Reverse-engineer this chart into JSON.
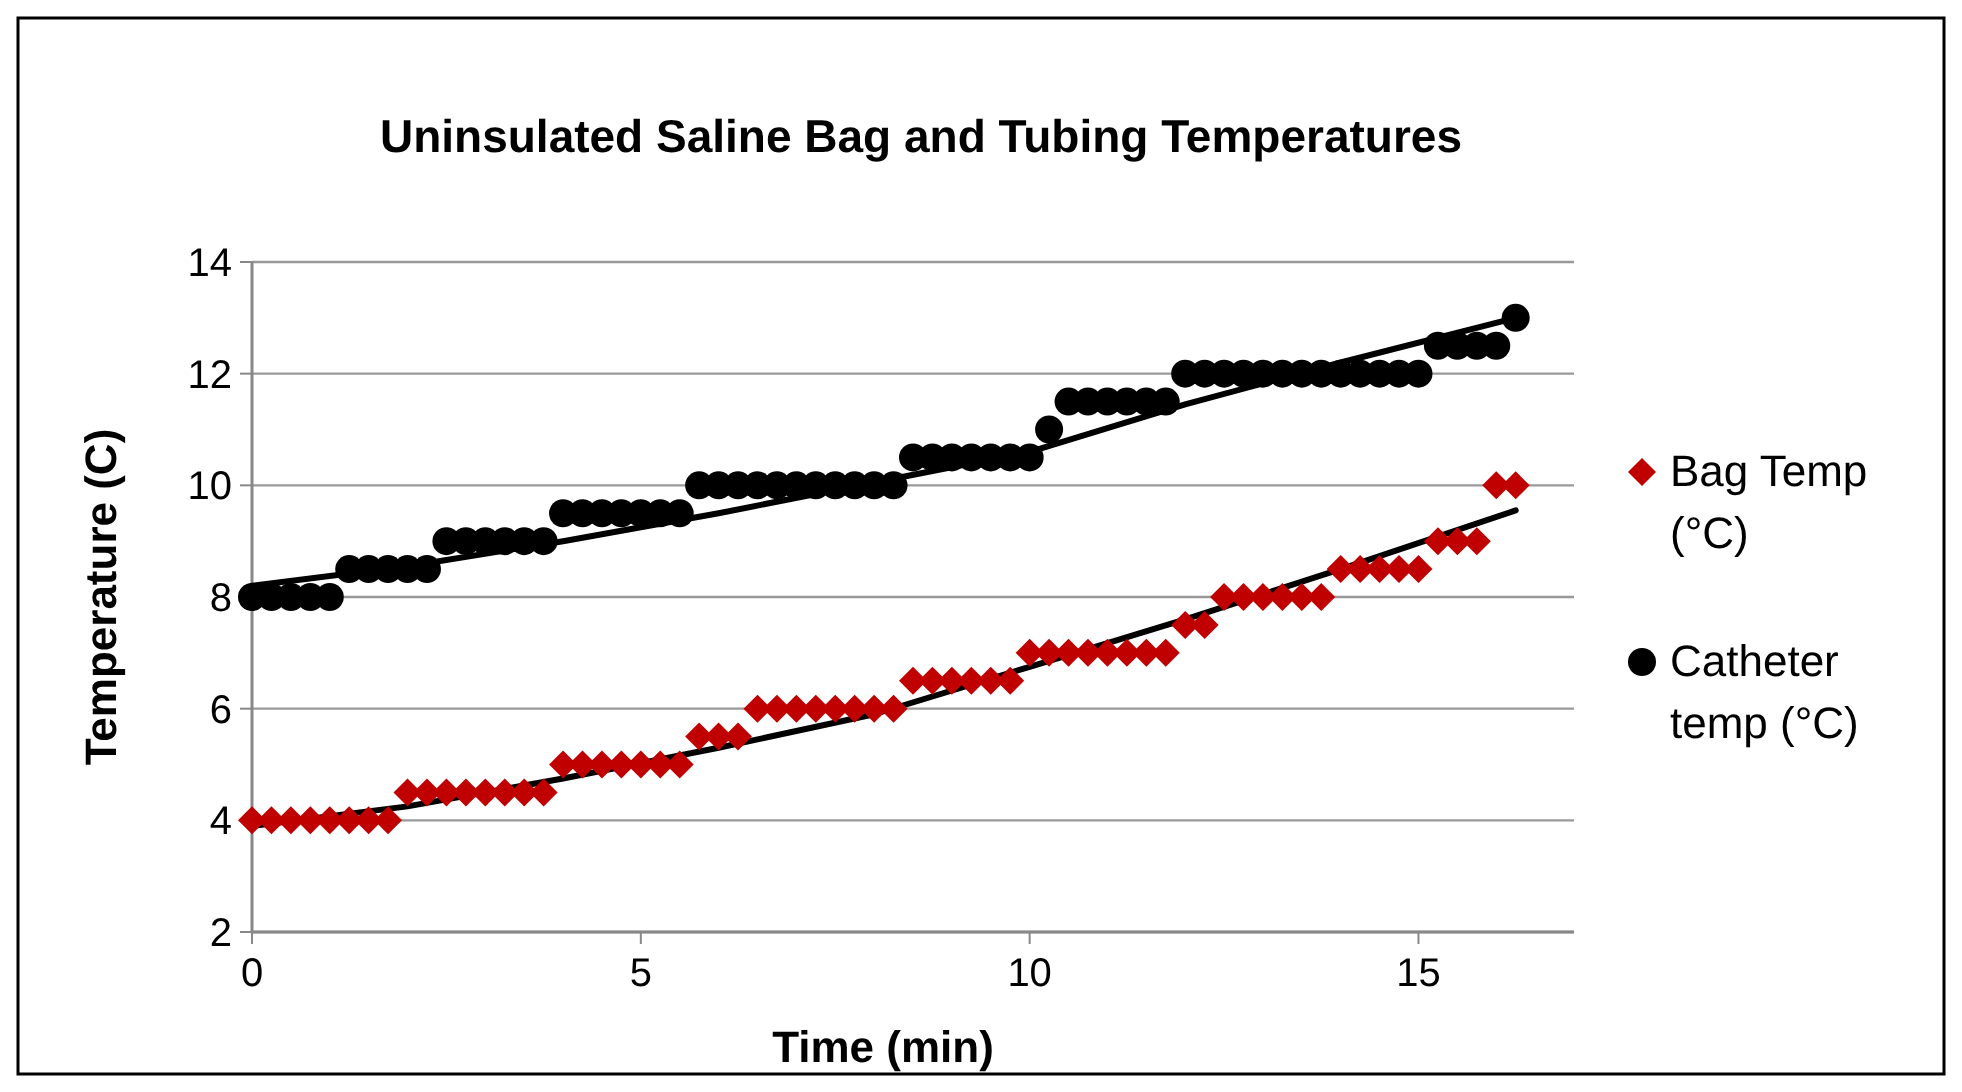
{
  "chart_data": {
    "type": "scatter",
    "title": "Uninsulated Saline Bag and Tubing Temperatures",
    "xlabel": "Time (min)",
    "ylabel": "Temperature (C)",
    "x": [
      0,
      0.25,
      0.5,
      0.75,
      1,
      1.25,
      1.5,
      1.75,
      2,
      2.25,
      2.5,
      2.75,
      3,
      3.25,
      3.5,
      3.75,
      4,
      4.25,
      4.5,
      4.75,
      5,
      5.25,
      5.5,
      5.75,
      6,
      6.25,
      6.5,
      6.75,
      7,
      7.25,
      7.5,
      7.75,
      8,
      8.25,
      8.5,
      8.75,
      9,
      9.25,
      9.5,
      9.75,
      10,
      10.25,
      10.5,
      10.75,
      11,
      11.25,
      11.5,
      11.75,
      12,
      12.25,
      12.5,
      12.75,
      13,
      13.25,
      13.5,
      13.75,
      14,
      14.25,
      14.5,
      14.75,
      15,
      15.25,
      15.5,
      15.75,
      16,
      16.25
    ],
    "series": [
      {
        "name": "Bag Temp (°C)",
        "color": "#c00000",
        "marker": "diamond",
        "values": [
          4,
          4,
          4,
          4,
          4,
          4,
          4,
          4,
          4.5,
          4.5,
          4.5,
          4.5,
          4.5,
          4.5,
          4.5,
          4.5,
          5,
          5,
          5,
          5,
          5,
          5,
          5,
          5.5,
          5.5,
          5.5,
          6,
          6,
          6,
          6,
          6,
          6,
          6,
          6,
          6.5,
          6.5,
          6.5,
          6.5,
          6.5,
          6.5,
          7,
          7,
          7,
          7,
          7,
          7,
          7,
          7,
          7.5,
          7.5,
          8,
          8,
          8,
          8,
          8,
          8,
          8.5,
          8.5,
          8.5,
          8.5,
          8.5,
          9,
          9,
          9,
          10,
          10
        ]
      },
      {
        "name": "Catheter temp (°C)",
        "color": "#000000",
        "marker": "circle",
        "values": [
          8,
          8,
          8,
          8,
          8,
          8.5,
          8.5,
          8.5,
          8.5,
          8.5,
          9,
          9,
          9,
          9,
          9,
          9,
          9.5,
          9.5,
          9.5,
          9.5,
          9.5,
          9.5,
          9.5,
          10,
          10,
          10,
          10,
          10,
          10,
          10,
          10,
          10,
          10,
          10,
          10.5,
          10.5,
          10.5,
          10.5,
          10.5,
          10.5,
          10.5,
          11,
          11.5,
          11.5,
          11.5,
          11.5,
          11.5,
          11.5,
          12,
          12,
          12,
          12,
          12,
          12,
          12,
          12,
          12,
          12,
          12,
          12,
          12,
          12.5,
          12.5,
          12.5,
          12.5,
          13
        ]
      },
      {
        "type": "line",
        "color": "#000000",
        "marker": "none",
        "x": [
          0,
          2,
          4,
          6,
          8,
          10,
          12,
          14,
          16.25
        ],
        "values": [
          3.9,
          4.25,
          4.75,
          5.3,
          5.9,
          6.75,
          7.6,
          8.5,
          9.55
        ]
      },
      {
        "type": "line",
        "color": "#000000",
        "marker": "none",
        "x": [
          0,
          2,
          4,
          6,
          8,
          10,
          12,
          14,
          16.25
        ],
        "values": [
          8.2,
          8.55,
          9.0,
          9.5,
          10.05,
          10.6,
          11.45,
          12.2,
          13.0
        ]
      }
    ],
    "xlim": [
      0,
      17
    ],
    "xticks": [
      0,
      5,
      10,
      15
    ],
    "ylim": [
      2,
      14
    ],
    "yticks": [
      2,
      4,
      6,
      8,
      10,
      12,
      14
    ],
    "grid": "y",
    "legend": "right"
  }
}
